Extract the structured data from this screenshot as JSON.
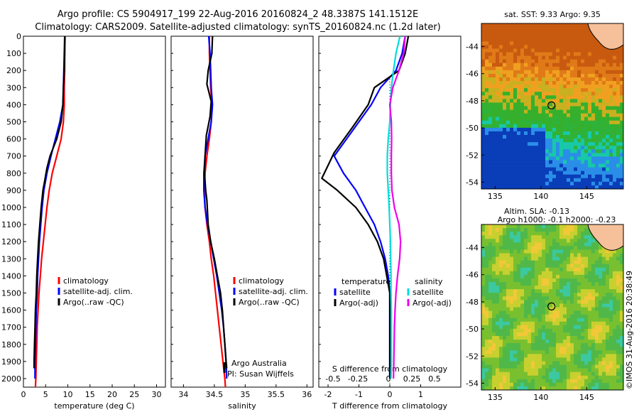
{
  "header": {
    "line1": "Argo profile: CS 5904917_199 22-Aug-2016 20160824_2 48.3387S 141.1512E",
    "line2": "Climatology: CARS2009. Satellite-adjusted climatology: synTS_20160824.nc (1.2d later)"
  },
  "colors": {
    "climatology": "#ff0000",
    "satellite": "#0000ff",
    "argo": "#000000",
    "s_satellite": "#00dddd",
    "s_argo": "#ee00ee"
  },
  "chart_data": [
    {
      "type": "line",
      "xlabel": "temperature (deg C)",
      "ylabel": "",
      "xlim": [
        0,
        32
      ],
      "ylim": [
        2050,
        0
      ],
      "y_reversed": true,
      "xticks": [
        0,
        5,
        10,
        15,
        20,
        25,
        30
      ],
      "yticks": [
        0,
        100,
        200,
        300,
        400,
        500,
        600,
        700,
        800,
        900,
        1000,
        1100,
        1200,
        1300,
        1400,
        1500,
        1600,
        1700,
        1800,
        1900,
        2000
      ],
      "legend_entries": [
        "climatology",
        "satellite-adj. clim.",
        "Argo(..raw -QC)"
      ],
      "series": [
        {
          "name": "climatology",
          "color": "#ff0000",
          "points": [
            [
              9.4,
              0
            ],
            [
              9.3,
              100
            ],
            [
              9.3,
              200
            ],
            [
              9.2,
              300
            ],
            [
              9.2,
              400
            ],
            [
              9.0,
              500
            ],
            [
              8.5,
              600
            ],
            [
              7.5,
              700
            ],
            [
              6.5,
              800
            ],
            [
              5.8,
              900
            ],
            [
              5.3,
              1000
            ],
            [
              4.9,
              1100
            ],
            [
              4.5,
              1200
            ],
            [
              4.1,
              1300
            ],
            [
              3.8,
              1400
            ],
            [
              3.5,
              1500
            ],
            [
              3.3,
              1600
            ],
            [
              3.1,
              1700
            ],
            [
              3.0,
              1800
            ],
            [
              2.9,
              1900
            ],
            [
              2.8,
              2000
            ],
            [
              2.7,
              2050
            ]
          ]
        },
        {
          "name": "satellite-adj. clim.",
          "color": "#0000ff",
          "points": [
            [
              9.3,
              0
            ],
            [
              9.2,
              100
            ],
            [
              9.1,
              200
            ],
            [
              9.0,
              300
            ],
            [
              8.9,
              400
            ],
            [
              8.2,
              500
            ],
            [
              7.2,
              600
            ],
            [
              6.2,
              700
            ],
            [
              5.3,
              800
            ],
            [
              4.6,
              900
            ],
            [
              4.2,
              1000
            ],
            [
              3.9,
              1100
            ],
            [
              3.6,
              1200
            ],
            [
              3.4,
              1300
            ],
            [
              3.2,
              1400
            ],
            [
              3.1,
              1500
            ],
            [
              2.9,
              1600
            ],
            [
              2.8,
              1700
            ],
            [
              2.7,
              1800
            ],
            [
              2.6,
              1900
            ],
            [
              2.6,
              2000
            ]
          ]
        },
        {
          "name": "Argo(..raw -QC)",
          "color": "#000000",
          "points": [
            [
              9.3,
              0
            ],
            [
              9.3,
              100
            ],
            [
              9.2,
              200
            ],
            [
              9.0,
              300
            ],
            [
              8.9,
              400
            ],
            [
              8.5,
              500
            ],
            [
              7.5,
              600
            ],
            [
              6.0,
              700
            ],
            [
              5.3,
              770
            ],
            [
              4.9,
              830
            ],
            [
              4.4,
              900
            ],
            [
              4.0,
              1000
            ],
            [
              3.7,
              1100
            ],
            [
              3.4,
              1200
            ],
            [
              3.2,
              1300
            ],
            [
              3.0,
              1400
            ],
            [
              2.9,
              1500
            ],
            [
              2.7,
              1600
            ],
            [
              2.6,
              1700
            ],
            [
              2.5,
              1800
            ],
            [
              2.4,
              1900
            ],
            [
              2.4,
              1940
            ]
          ]
        }
      ]
    },
    {
      "type": "line",
      "xlabel": "salinity",
      "ylabel": "",
      "xlim": [
        33.8,
        36.1
      ],
      "ylim": [
        2050,
        0
      ],
      "y_reversed": true,
      "xticks": [
        34,
        34.5,
        35,
        35.5,
        36
      ],
      "legend_entries": [
        "climatology",
        "satellite-adj. clim.",
        "Argo(..raw -QC)"
      ],
      "annotations": [
        "Argo Australia",
        "PI: Susan Wijffels"
      ],
      "series": [
        {
          "name": "climatology",
          "color": "#ff0000",
          "points": [
            [
              34.42,
              0
            ],
            [
              34.42,
              100
            ],
            [
              34.43,
              200
            ],
            [
              34.44,
              300
            ],
            [
              34.46,
              400
            ],
            [
              34.45,
              500
            ],
            [
              34.42,
              600
            ],
            [
              34.38,
              700
            ],
            [
              34.35,
              800
            ],
            [
              34.34,
              900
            ],
            [
              34.35,
              1000
            ],
            [
              34.38,
              1100
            ],
            [
              34.42,
              1200
            ],
            [
              34.45,
              1300
            ],
            [
              34.49,
              1400
            ],
            [
              34.52,
              1500
            ],
            [
              34.55,
              1600
            ],
            [
              34.58,
              1700
            ],
            [
              34.61,
              1800
            ],
            [
              34.64,
              1900
            ],
            [
              34.67,
              2000
            ],
            [
              34.68,
              2050
            ]
          ]
        },
        {
          "name": "satellite-adj. clim.",
          "color": "#0000ff",
          "points": [
            [
              34.41,
              0
            ],
            [
              34.43,
              100
            ],
            [
              34.44,
              200
            ],
            [
              34.45,
              300
            ],
            [
              34.47,
              400
            ],
            [
              34.45,
              500
            ],
            [
              34.4,
              600
            ],
            [
              34.35,
              700
            ],
            [
              34.33,
              800
            ],
            [
              34.33,
              900
            ],
            [
              34.35,
              1000
            ],
            [
              34.39,
              1100
            ],
            [
              34.44,
              1200
            ],
            [
              34.49,
              1300
            ],
            [
              34.54,
              1400
            ],
            [
              34.58,
              1500
            ],
            [
              34.62,
              1600
            ],
            [
              34.65,
              1700
            ],
            [
              34.67,
              1800
            ],
            [
              34.69,
              1900
            ],
            [
              34.7,
              2000
            ]
          ]
        },
        {
          "name": "Argo(..raw -QC)",
          "color": "#000000",
          "points": [
            [
              34.47,
              0
            ],
            [
              34.46,
              100
            ],
            [
              34.4,
              200
            ],
            [
              34.38,
              280
            ],
            [
              34.45,
              380
            ],
            [
              34.43,
              470
            ],
            [
              34.37,
              580
            ],
            [
              34.35,
              700
            ],
            [
              34.34,
              800
            ],
            [
              34.36,
              900
            ],
            [
              34.38,
              960
            ],
            [
              34.4,
              1100
            ],
            [
              34.44,
              1200
            ],
            [
              34.5,
              1300
            ],
            [
              34.55,
              1400
            ],
            [
              34.6,
              1500
            ],
            [
              34.63,
              1600
            ],
            [
              34.65,
              1700
            ],
            [
              34.67,
              1800
            ],
            [
              34.69,
              1900
            ],
            [
              34.7,
              1940
            ]
          ]
        }
      ]
    },
    {
      "type": "line",
      "xlabel": "T difference from climatology",
      "top_axis_label": "S difference from climatology",
      "xlim": [
        -2.3,
        2.3
      ],
      "ylim": [
        2050,
        0
      ],
      "y_reversed": true,
      "xticks": [
        -2,
        -1,
        0,
        1
      ],
      "top_xticks": [
        "-0.5",
        "-0.25",
        "0",
        "0.25",
        "0.5"
      ],
      "legend_headings": [
        "temperature",
        "salinity"
      ],
      "legend_entries": [
        "satellite",
        "Argo(-adj)",
        "satellite",
        "Argo(-adj)"
      ],
      "series": [
        {
          "name": "satellite",
          "group": "temperature",
          "color": "#0000ff",
          "points": [
            [
              0.5,
              0
            ],
            [
              0.4,
              100
            ],
            [
              0.2,
              200
            ],
            [
              -0.3,
              300
            ],
            [
              -0.6,
              400
            ],
            [
              -1.0,
              500
            ],
            [
              -1.4,
              600
            ],
            [
              -1.8,
              700
            ],
            [
              -1.5,
              800
            ],
            [
              -1.1,
              900
            ],
            [
              -0.8,
              1000
            ],
            [
              -0.5,
              1100
            ],
            [
              -0.3,
              1200
            ],
            [
              -0.15,
              1300
            ],
            [
              -0.05,
              1400
            ],
            [
              0.0,
              1500
            ],
            [
              0.0,
              1600
            ],
            [
              0.0,
              1700
            ],
            [
              0.0,
              1800
            ],
            [
              0.0,
              1900
            ],
            [
              0.0,
              2000
            ]
          ]
        },
        {
          "name": "Argo(-adj)",
          "group": "temperature",
          "color": "#000000",
          "points": [
            [
              0.6,
              0
            ],
            [
              0.5,
              100
            ],
            [
              0.3,
              200
            ],
            [
              -0.5,
              300
            ],
            [
              -0.7,
              400
            ],
            [
              -1.2,
              530
            ],
            [
              -1.8,
              680
            ],
            [
              -2.2,
              830
            ],
            [
              -1.7,
              900
            ],
            [
              -1.1,
              1000
            ],
            [
              -0.7,
              1100
            ],
            [
              -0.4,
              1200
            ],
            [
              -0.2,
              1300
            ],
            [
              -0.1,
              1400
            ],
            [
              0.0,
              1500
            ],
            [
              0.0,
              1600
            ],
            [
              0.0,
              1700
            ],
            [
              0.0,
              1800
            ],
            [
              0.0,
              1900
            ],
            [
              0.0,
              2000
            ]
          ]
        },
        {
          "name": "satellite",
          "group": "salinity",
          "color": "#00dddd",
          "points": [
            [
              0.33,
              0
            ],
            [
              0.2,
              100
            ],
            [
              0.12,
              200
            ],
            [
              0.05,
              300
            ],
            [
              0.02,
              400
            ],
            [
              0.0,
              500
            ],
            [
              -0.05,
              600
            ],
            [
              -0.08,
              700
            ],
            [
              -0.08,
              800
            ],
            [
              -0.05,
              900
            ],
            [
              -0.02,
              1000
            ],
            [
              0.0,
              1100
            ],
            [
              0.02,
              1200
            ],
            [
              0.03,
              1300
            ],
            [
              0.04,
              1400
            ],
            [
              0.04,
              1500
            ],
            [
              0.05,
              1600
            ],
            [
              0.05,
              1700
            ],
            [
              0.05,
              1800
            ],
            [
              0.05,
              1900
            ],
            [
              0.04,
              2000
            ]
          ]
        },
        {
          "name": "Argo(-adj)",
          "group": "salinity",
          "color": "#ee00ee",
          "points": [
            [
              0.5,
              0
            ],
            [
              0.45,
              100
            ],
            [
              0.3,
              200
            ],
            [
              0.1,
              300
            ],
            [
              0.0,
              400
            ],
            [
              0.05,
              500
            ],
            [
              0.06,
              600
            ],
            [
              0.05,
              700
            ],
            [
              0.05,
              800
            ],
            [
              0.07,
              900
            ],
            [
              0.15,
              1000
            ],
            [
              0.3,
              1100
            ],
            [
              0.35,
              1200
            ],
            [
              0.32,
              1300
            ],
            [
              0.25,
              1400
            ],
            [
              0.2,
              1500
            ],
            [
              0.17,
              1600
            ],
            [
              0.15,
              1700
            ],
            [
              0.14,
              1800
            ],
            [
              0.13,
              1900
            ],
            [
              0.12,
              2000
            ]
          ]
        }
      ]
    },
    {
      "type": "heatmap",
      "title": "sat. SST: 9.33 Argo: 9.35",
      "xticks": [
        135,
        140,
        145
      ],
      "yticks": [
        -44,
        -46,
        -48,
        -50,
        -52,
        -54
      ],
      "xlim": [
        133.5,
        149
      ],
      "ylim": [
        -54.5,
        -42.3
      ],
      "marker": {
        "lon": 141.15,
        "lat": -48.34
      }
    },
    {
      "type": "heatmap",
      "title": "Altim. SLA: -0.13",
      "subtitle": "Argo h1000: -0.1 h2000: -0.23",
      "xticks": [
        135,
        140,
        145
      ],
      "yticks": [
        -44,
        -46,
        -48,
        -50,
        -52,
        -54
      ],
      "xlim": [
        133.5,
        149
      ],
      "ylim": [
        -54.5,
        -42.3
      ],
      "marker": {
        "lon": 141.15,
        "lat": -48.34
      }
    }
  ],
  "credit": "©IMOS 31-Aug-2016 20:38:49"
}
